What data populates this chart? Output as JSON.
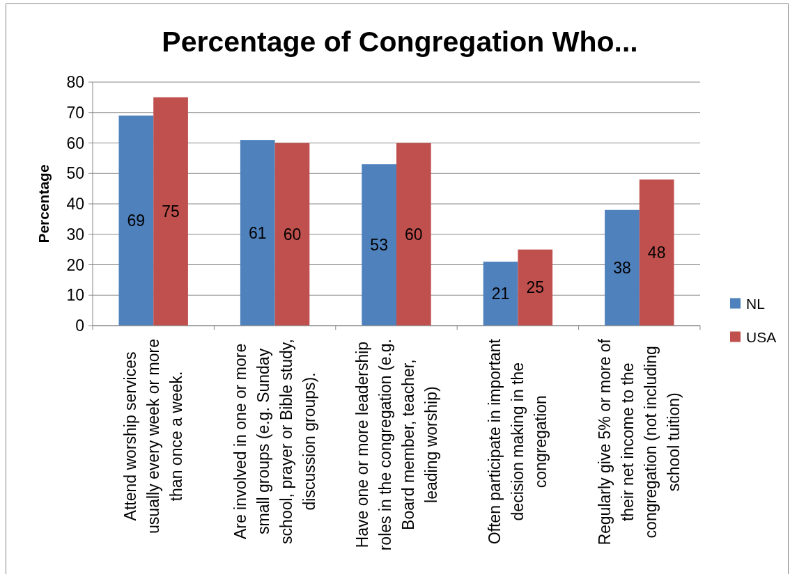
{
  "chart_data": {
    "type": "bar",
    "title": "Percentage of Congregation Who...",
    "ylabel": "Percentage",
    "categories": [
      "Attend worship services usually every week or more than once a week.",
      "Are involved in one or more small groups (e.g. Sunday school, prayer or Bible study, discussion groups).",
      "Have one or more leadership roles in the congregation (e.g. Board member, teacher, leading worship)",
      "Often participate in important decision making in the congregation",
      "Regularly give 5% or more of their net income to the congregation (not including school tuition)"
    ],
    "series": [
      {
        "name": "NL",
        "color": "#4f81bd",
        "values": [
          69,
          61,
          53,
          21,
          38
        ]
      },
      {
        "name": "USA",
        "color": "#c0504d",
        "values": [
          75,
          60,
          60,
          25,
          48
        ]
      }
    ],
    "ylim": [
      0,
      80
    ],
    "yticks": [
      0,
      10,
      20,
      30,
      40,
      50,
      60,
      70,
      80
    ],
    "grid": "y",
    "legend": "right",
    "data_labels": true
  }
}
